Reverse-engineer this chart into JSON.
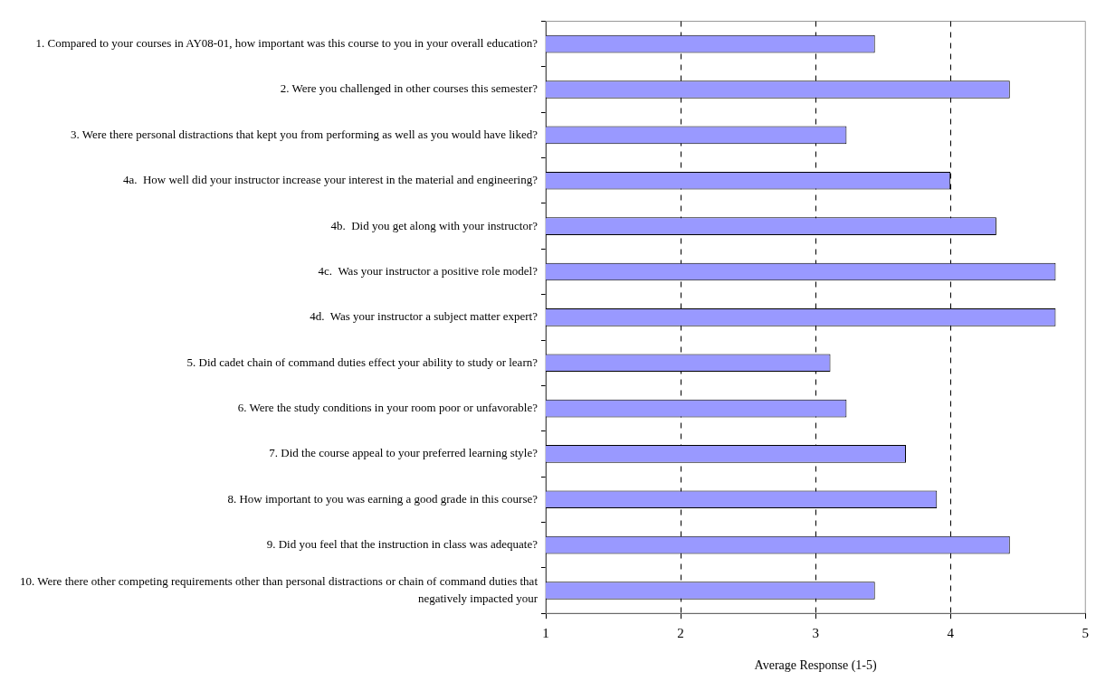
{
  "chart_data": {
    "type": "bar",
    "orientation": "horizontal",
    "categories": [
      "1. Compared to your courses in AY08-01, how important was this course to you in your overall education?",
      "2. Were you challenged in other courses this semester?",
      "3. Were there personal distractions that kept you from performing as well as you would have liked?",
      "4a.  How well did your instructor increase your interest in the material and engineering?",
      "4b.  Did you get along with your instructor?",
      "4c.  Was your instructor a positive role model?",
      "4d.  Was your instructor a subject matter expert?",
      "5. Did cadet chain of command duties effect your ability to study or learn?",
      "6. Were the study conditions in your room poor or unfavorable?",
      "7. Did the course appeal to your preferred learning style?",
      "8. How important to you was earning a good grade in this course?",
      "9. Did you feel that the instruction in class was adequate?",
      "10. Were there other competing requirements other than personal distractions or chain of command duties that negatively impacted your"
    ],
    "values": [
      3.44,
      4.44,
      3.23,
      4.0,
      4.34,
      4.78,
      4.78,
      3.11,
      3.23,
      3.67,
      3.9,
      4.44,
      3.44
    ],
    "color": "#9999ff",
    "xlabel": "Average Response (1-5)",
    "xlim": [
      1,
      5
    ],
    "xticks": [
      1,
      2,
      3,
      4,
      5
    ],
    "grid": "x",
    "legend": false
  }
}
